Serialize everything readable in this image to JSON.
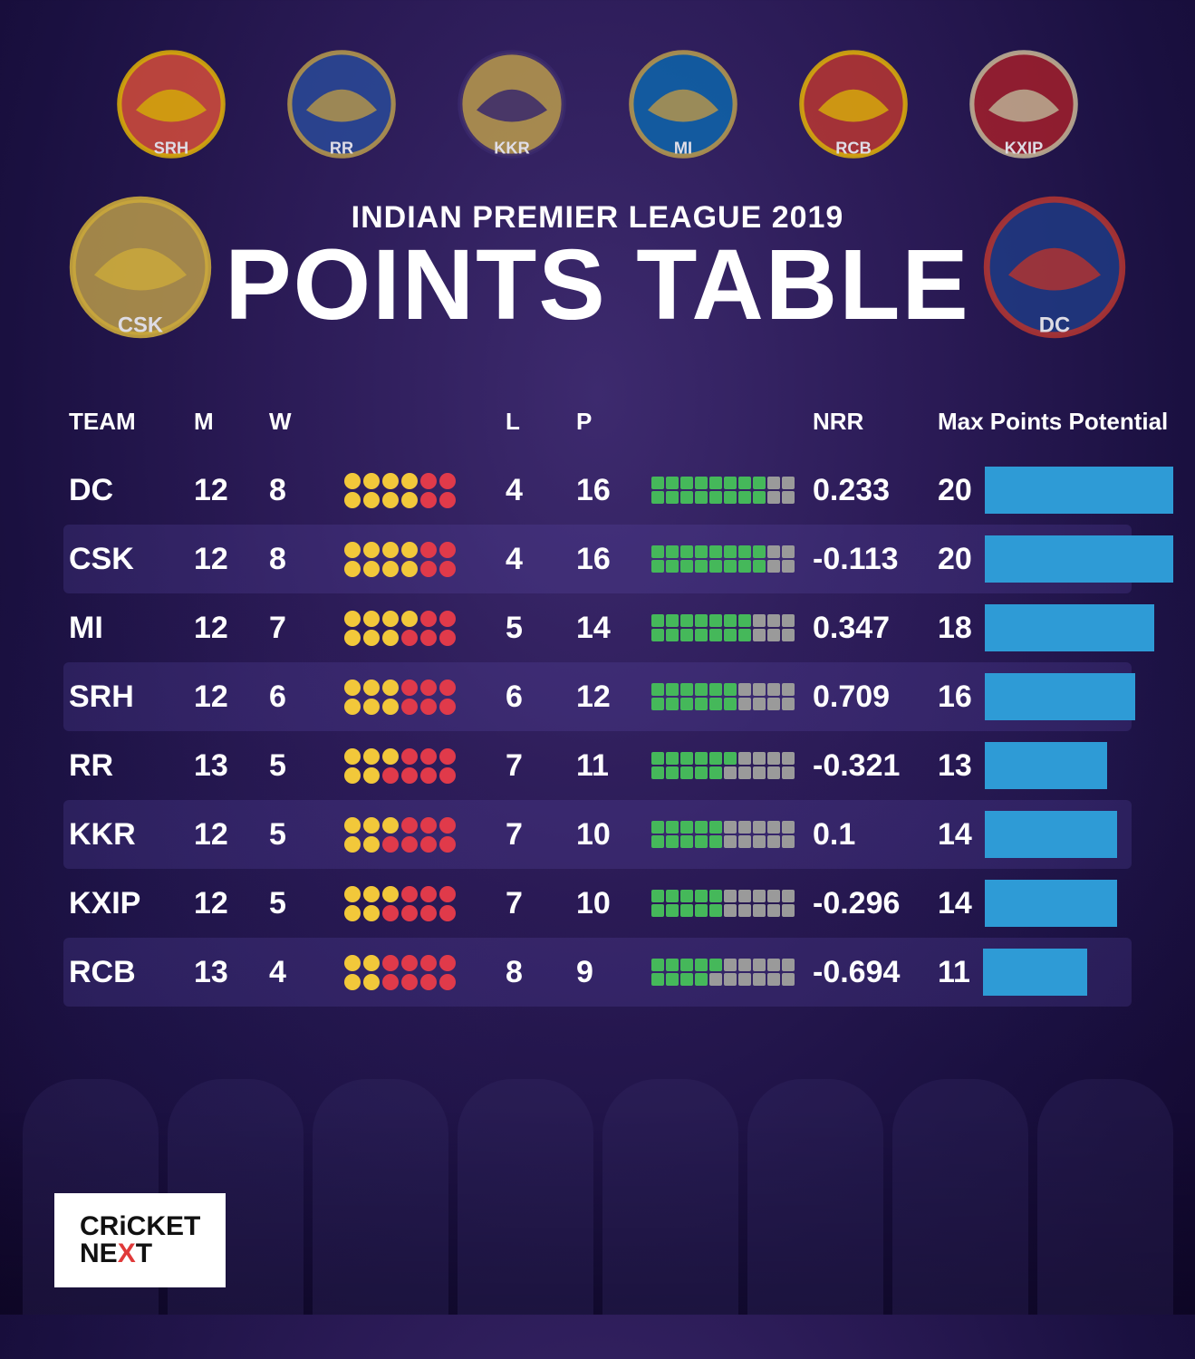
{
  "title": {
    "subtitle": "INDIAN PREMIER LEAGUE 2019",
    "main": "POINTS TABLE"
  },
  "top_logos": [
    {
      "name": "SunRisers",
      "fill": "#e8533a",
      "accent": "#f2c200",
      "text": "SRH"
    },
    {
      "name": "Rajasthan Royals",
      "fill": "#2a4f9e",
      "accent": "#c9a94a",
      "text": "RR"
    },
    {
      "name": "Knight Riders",
      "fill": "#c9a94a",
      "accent": "#3b2a6e",
      "text": "KKR"
    },
    {
      "name": "Mumbai Indians",
      "fill": "#0a6bb3",
      "accent": "#c9a94a",
      "text": "MI"
    },
    {
      "name": "RCB",
      "fill": "#c83a2e",
      "accent": "#f2c200",
      "text": "RCB"
    },
    {
      "name": "Kings XI Punjab",
      "fill": "#b02028",
      "accent": "#d6c9a0",
      "text": "KXIP"
    }
  ],
  "side_logos": {
    "left": {
      "name": "Chennai Super Kings",
      "fill": "#c9a94a",
      "accent": "#e8c23a",
      "text": "CSK"
    },
    "right": {
      "name": "Delhi Capitals",
      "fill": "#1f3e8a",
      "accent": "#c83a2e",
      "text": "DC"
    }
  },
  "columns": {
    "team": "TEAM",
    "m": "M",
    "w": "W",
    "l": "L",
    "p": "P",
    "nrr": "NRR",
    "mpp": "Max Points Potential"
  },
  "colors": {
    "dot_win": "#f2c83a",
    "dot_loss": "#e03a4a",
    "sq_on": "#45b85a",
    "sq_off": "#9a9a9a",
    "bar": "#2e9bd6",
    "row_alt_bg": "rgba(100,80,180,0.22)",
    "background_from": "#3d2a6e",
    "background_to": "#12082e",
    "text": "#ffffff"
  },
  "max_points_scale": 20,
  "max_dots": 14,
  "max_squares": 20,
  "rows": [
    {
      "team": "DC",
      "m": 12,
      "w": 8,
      "l": 4,
      "p": 16,
      "nrr": "0.233",
      "mpp": 20
    },
    {
      "team": "CSK",
      "m": 12,
      "w": 8,
      "l": 4,
      "p": 16,
      "nrr": "-0.113",
      "mpp": 20
    },
    {
      "team": "MI",
      "m": 12,
      "w": 7,
      "l": 5,
      "p": 14,
      "nrr": "0.347",
      "mpp": 18
    },
    {
      "team": "SRH",
      "m": 12,
      "w": 6,
      "l": 6,
      "p": 12,
      "nrr": "0.709",
      "mpp": 16
    },
    {
      "team": "RR",
      "m": 13,
      "w": 5,
      "l": 7,
      "p": 11,
      "nrr": "-0.321",
      "mpp": 13
    },
    {
      "team": "KKR",
      "m": 12,
      "w": 5,
      "l": 7,
      "p": 10,
      "nrr": "0.1",
      "mpp": 14
    },
    {
      "team": "KXIP",
      "m": 12,
      "w": 5,
      "l": 7,
      "p": 10,
      "nrr": "-0.296",
      "mpp": 14
    },
    {
      "team": "RCB",
      "m": 13,
      "w": 4,
      "l": 8,
      "p": 9,
      "nrr": "-0.694",
      "mpp": 11
    }
  ],
  "footer": {
    "line1": "CRiCKET",
    "line2": "NEXT"
  }
}
